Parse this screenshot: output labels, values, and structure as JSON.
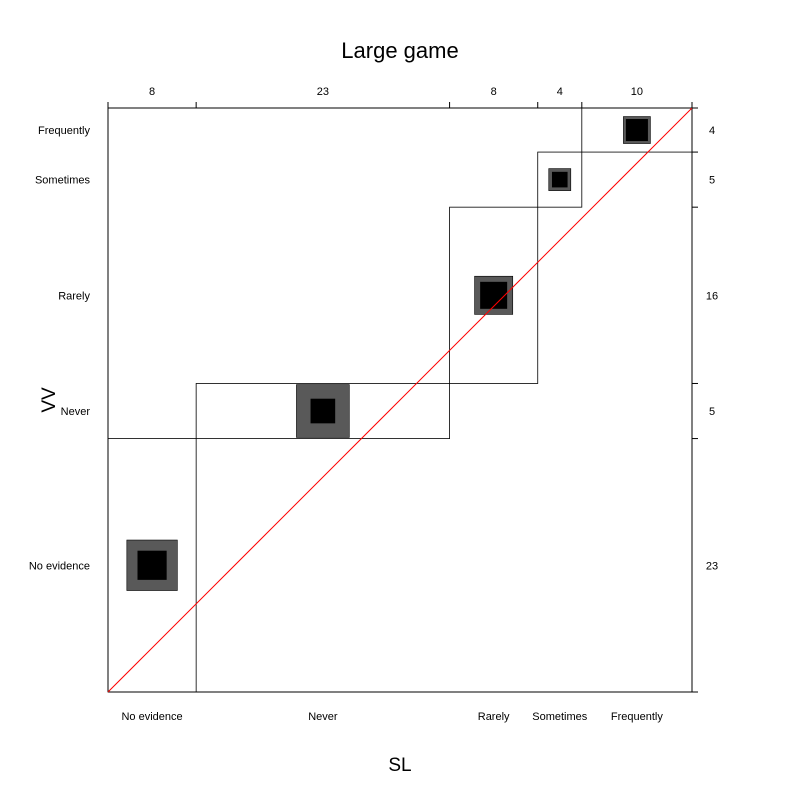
{
  "chart_data": {
    "type": "agreement",
    "title": "Large game",
    "xlabel": "SL",
    "ylabel": "VV",
    "categories": [
      "No evidence",
      "Never",
      "Rarely",
      "Sometimes",
      "Frequently"
    ],
    "col_totals": [
      8,
      23,
      8,
      4,
      10
    ],
    "row_totals": [
      23,
      5,
      16,
      5,
      4
    ],
    "n": 53,
    "diagonal": [
      {
        "category": "No evidence",
        "exact": 7,
        "partial": 21
      },
      {
        "category": "Never",
        "exact": 5,
        "partial": 23
      },
      {
        "category": "Rarely",
        "exact": 6,
        "partial": 12
      },
      {
        "category": "Sometimes",
        "exact": 2,
        "partial": 4
      },
      {
        "category": "Frequently",
        "exact": 4,
        "partial": 6
      }
    ],
    "colors": {
      "exact": "#000000",
      "partial": "#595959",
      "reference_line": "#ff0000",
      "frame": "#000000"
    }
  }
}
